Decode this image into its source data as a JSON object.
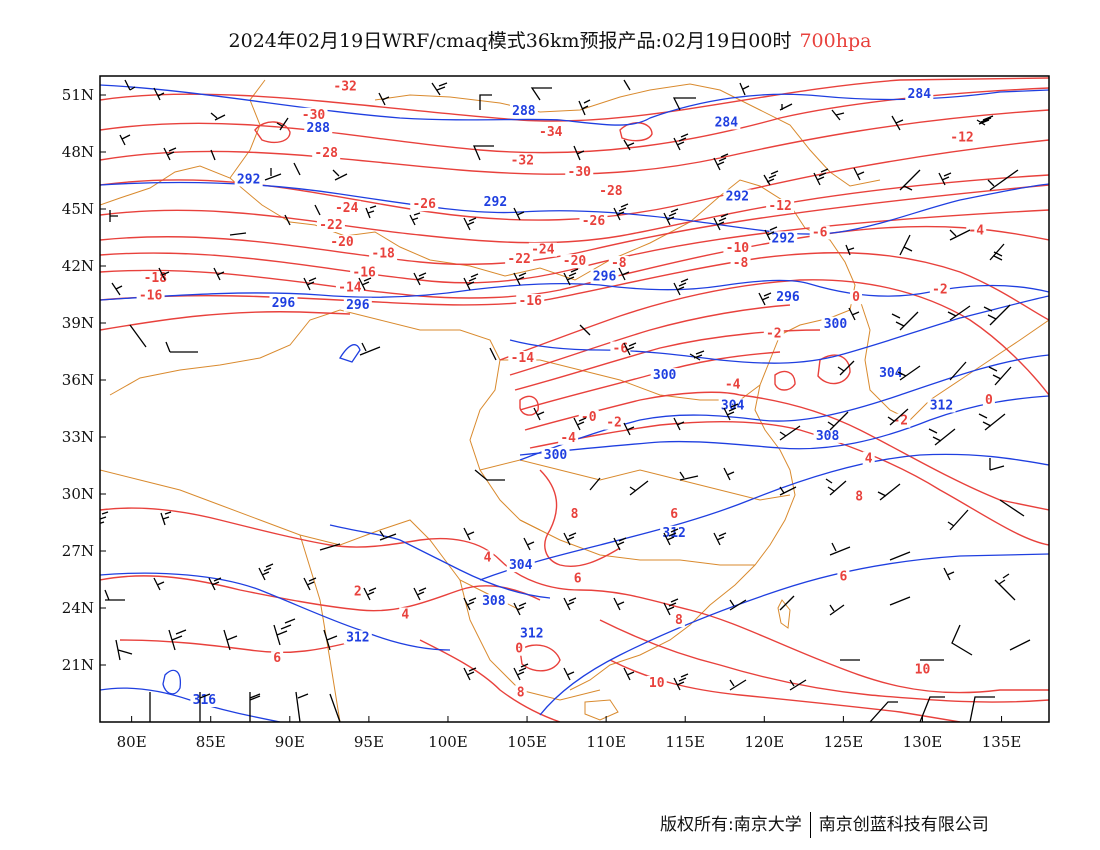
{
  "title": {
    "main": "2024年02月19日WRF/cmaq模式36km预报产品:02月19日00时",
    "level": "700hpa",
    "level_color": "#e8413c"
  },
  "footer": {
    "copyright": "版权所有:南京大学",
    "company": "南京创蓝科技有限公司"
  },
  "map": {
    "lon_range": [
      78,
      138
    ],
    "lat_range": [
      18,
      52
    ],
    "lon_ticks": [
      "80E",
      "85E",
      "90E",
      "95E",
      "100E",
      "105E",
      "110E",
      "115E",
      "120E",
      "125E",
      "130E",
      "135E"
    ],
    "lat_ticks": [
      "21N",
      "24N",
      "27N",
      "30N",
      "33N",
      "36N",
      "39N",
      "42N",
      "45N",
      "48N",
      "51N"
    ],
    "temperature_color": "#e8413c",
    "height_color": "#1f3fe0",
    "border_color": "#d98a2e",
    "barb_color": "#000000",
    "temperature_labels": [
      {
        "text": "-32",
        "lon": 93.5,
        "lat": 51.3
      },
      {
        "text": "-30",
        "lon": 91.5,
        "lat": 49.8
      },
      {
        "text": "-28",
        "lon": 92.3,
        "lat": 47.8
      },
      {
        "text": "-34",
        "lon": 106.5,
        "lat": 48.9
      },
      {
        "text": "-32",
        "lon": 104.7,
        "lat": 47.4
      },
      {
        "text": "-30",
        "lon": 108.3,
        "lat": 46.8
      },
      {
        "text": "-28",
        "lon": 110.3,
        "lat": 45.8
      },
      {
        "text": "-26",
        "lon": 98.5,
        "lat": 45.1
      },
      {
        "text": "-24",
        "lon": 93.6,
        "lat": 44.9
      },
      {
        "text": "-26",
        "lon": 109.2,
        "lat": 44.2
      },
      {
        "text": "-22",
        "lon": 92.6,
        "lat": 44.0
      },
      {
        "text": "-20",
        "lon": 93.3,
        "lat": 43.1
      },
      {
        "text": "-18",
        "lon": 95.9,
        "lat": 42.5
      },
      {
        "text": "-24",
        "lon": 106.0,
        "lat": 42.7
      },
      {
        "text": "-22",
        "lon": 104.5,
        "lat": 42.2
      },
      {
        "text": "-20",
        "lon": 108.0,
        "lat": 42.1
      },
      {
        "text": "-16",
        "lon": 94.7,
        "lat": 41.5
      },
      {
        "text": "-14",
        "lon": 93.8,
        "lat": 40.7
      },
      {
        "text": "-18",
        "lon": 81.5,
        "lat": 41.2
      },
      {
        "text": "-16",
        "lon": 81.2,
        "lat": 40.3
      },
      {
        "text": "-16",
        "lon": 105.2,
        "lat": 40.0
      },
      {
        "text": "-14",
        "lon": 104.7,
        "lat": 37.0
      },
      {
        "text": "-12",
        "lon": 121.0,
        "lat": 45.0
      },
      {
        "text": "-10",
        "lon": 118.3,
        "lat": 42.8
      },
      {
        "text": "-8",
        "lon": 118.5,
        "lat": 42.0
      },
      {
        "text": "-6",
        "lon": 123.5,
        "lat": 43.6
      },
      {
        "text": "-8",
        "lon": 110.8,
        "lat": 42.0
      },
      {
        "text": "-12",
        "lon": 132.5,
        "lat": 48.6
      },
      {
        "text": "-4",
        "lon": 133.4,
        "lat": 43.7
      },
      {
        "text": "-2",
        "lon": 131.1,
        "lat": 40.6
      },
      {
        "text": "0",
        "lon": 125.8,
        "lat": 40.2
      },
      {
        "text": "-6",
        "lon": 110.9,
        "lat": 37.5
      },
      {
        "text": "-2",
        "lon": 120.6,
        "lat": 38.3
      },
      {
        "text": "-4",
        "lon": 118.0,
        "lat": 35.6
      },
      {
        "text": "-2",
        "lon": 128.6,
        "lat": 33.7
      },
      {
        "text": "0",
        "lon": 134.2,
        "lat": 34.8
      },
      {
        "text": "-4",
        "lon": 107.6,
        "lat": 32.8
      },
      {
        "text": "-0",
        "lon": 108.9,
        "lat": 33.9
      },
      {
        "text": "-2",
        "lon": 110.5,
        "lat": 33.6
      },
      {
        "text": "4",
        "lon": 126.6,
        "lat": 31.7
      },
      {
        "text": "8",
        "lon": 126.0,
        "lat": 29.7
      },
      {
        "text": "8",
        "lon": 108.0,
        "lat": 28.8
      },
      {
        "text": "6",
        "lon": 114.3,
        "lat": 28.8
      },
      {
        "text": "4",
        "lon": 102.5,
        "lat": 26.5
      },
      {
        "text": "6",
        "lon": 108.2,
        "lat": 25.4
      },
      {
        "text": "6",
        "lon": 125.0,
        "lat": 25.5
      },
      {
        "text": "2",
        "lon": 94.3,
        "lat": 24.7
      },
      {
        "text": "4",
        "lon": 97.3,
        "lat": 23.5
      },
      {
        "text": "8",
        "lon": 114.6,
        "lat": 23.2
      },
      {
        "text": "6",
        "lon": 89.2,
        "lat": 21.2
      },
      {
        "text": "0",
        "lon": 104.5,
        "lat": 21.7
      },
      {
        "text": "8",
        "lon": 104.6,
        "lat": 19.4
      },
      {
        "text": "10",
        "lon": 113.2,
        "lat": 19.9
      },
      {
        "text": "10",
        "lon": 130.0,
        "lat": 20.6
      }
    ],
    "height_labels": [
      {
        "text": "288",
        "lon": 91.8,
        "lat": 49.1
      },
      {
        "text": "288",
        "lon": 104.8,
        "lat": 50.0
      },
      {
        "text": "284",
        "lon": 117.6,
        "lat": 49.4
      },
      {
        "text": "284",
        "lon": 129.8,
        "lat": 50.9
      },
      {
        "text": "292",
        "lon": 87.4,
        "lat": 46.4
      },
      {
        "text": "292",
        "lon": 103.0,
        "lat": 45.2
      },
      {
        "text": "292",
        "lon": 118.3,
        "lat": 45.5
      },
      {
        "text": "292",
        "lon": 121.2,
        "lat": 43.3
      },
      {
        "text": "296",
        "lon": 89.6,
        "lat": 39.9
      },
      {
        "text": "296",
        "lon": 94.3,
        "lat": 39.8
      },
      {
        "text": "296",
        "lon": 109.9,
        "lat": 41.3
      },
      {
        "text": "296",
        "lon": 121.5,
        "lat": 40.2
      },
      {
        "text": "300",
        "lon": 124.5,
        "lat": 38.8
      },
      {
        "text": "300",
        "lon": 113.7,
        "lat": 36.1
      },
      {
        "text": "304",
        "lon": 128.0,
        "lat": 36.2
      },
      {
        "text": "304",
        "lon": 118.0,
        "lat": 34.5
      },
      {
        "text": "312",
        "lon": 131.2,
        "lat": 34.5
      },
      {
        "text": "308",
        "lon": 124.0,
        "lat": 32.9
      },
      {
        "text": "300",
        "lon": 106.8,
        "lat": 31.9
      },
      {
        "text": "312",
        "lon": 114.3,
        "lat": 27.8
      },
      {
        "text": "304",
        "lon": 104.6,
        "lat": 26.1
      },
      {
        "text": "308",
        "lon": 102.9,
        "lat": 24.2
      },
      {
        "text": "312",
        "lon": 105.3,
        "lat": 22.5
      },
      {
        "text": "312",
        "lon": 94.3,
        "lat": 22.3
      },
      {
        "text": "316",
        "lon": 84.6,
        "lat": 19.0
      }
    ]
  }
}
